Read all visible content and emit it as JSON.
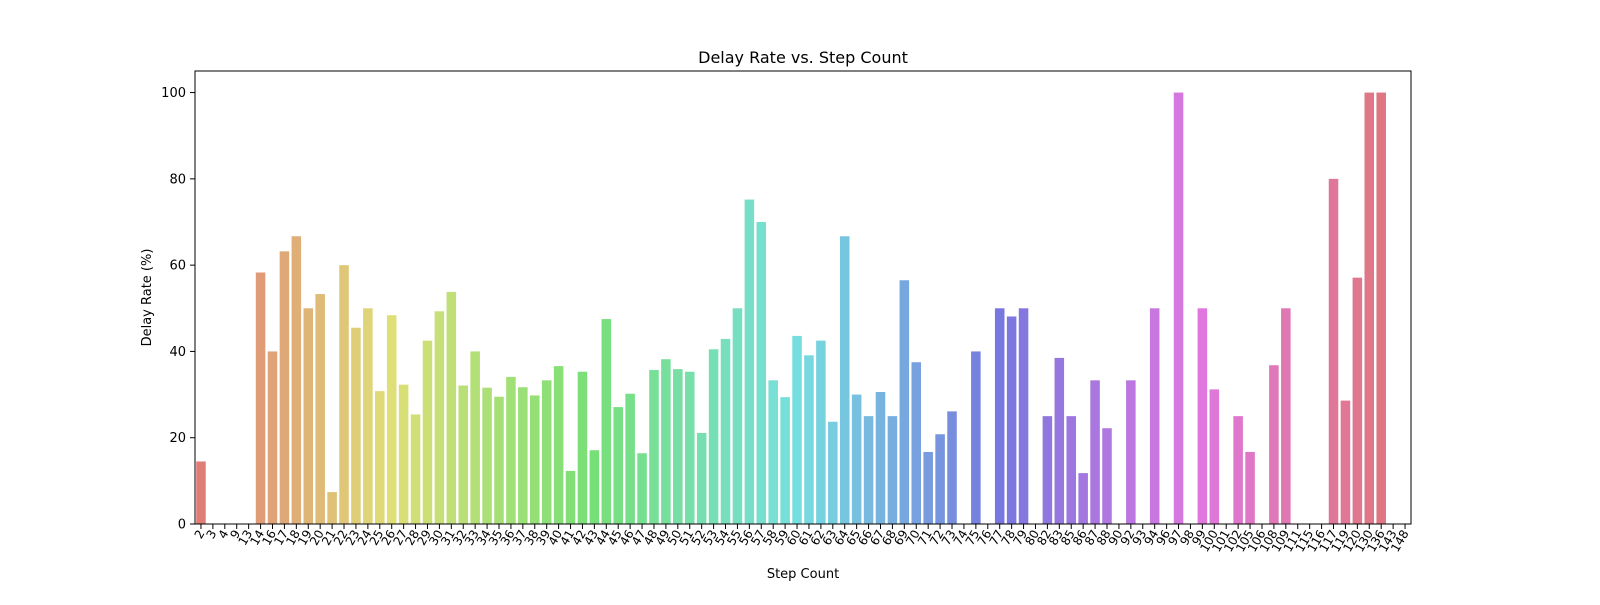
{
  "chart_data": {
    "type": "bar",
    "title": "Delay Rate vs. Step Count",
    "xlabel": "Step Count",
    "ylabel": "Delay Rate (%)",
    "ylim": [
      0,
      105
    ],
    "yticks": [
      "0",
      "20",
      "40",
      "60",
      "80",
      "100"
    ],
    "grid": false,
    "legend": "none",
    "categories": [
      "2",
      "3",
      "4",
      "9",
      "13",
      "14",
      "16",
      "17",
      "18",
      "19",
      "20",
      "21",
      "22",
      "23",
      "24",
      "25",
      "26",
      "27",
      "28",
      "29",
      "30",
      "31",
      "32",
      "33",
      "34",
      "35",
      "36",
      "37",
      "38",
      "39",
      "40",
      "41",
      "42",
      "43",
      "44",
      "45",
      "46",
      "47",
      "48",
      "49",
      "50",
      "51",
      "52",
      "53",
      "54",
      "55",
      "56",
      "57",
      "58",
      "59",
      "60",
      "61",
      "62",
      "63",
      "64",
      "65",
      "66",
      "67",
      "68",
      "69",
      "70",
      "71",
      "72",
      "73",
      "74",
      "75",
      "76",
      "77",
      "78",
      "79",
      "80",
      "82",
      "83",
      "85",
      "86",
      "87",
      "88",
      "90",
      "92",
      "93",
      "94",
      "96",
      "97",
      "98",
      "99",
      "100",
      "101",
      "102",
      "105",
      "106",
      "108",
      "109",
      "111",
      "115",
      "116",
      "117",
      "119",
      "120",
      "130",
      "136",
      "143",
      "148"
    ],
    "values": [
      14.5,
      0,
      0,
      0,
      0,
      58.3,
      40,
      63.2,
      66.7,
      50,
      53.3,
      7.4,
      60,
      45.5,
      50,
      30.8,
      48.4,
      32.3,
      25.4,
      42.5,
      49.3,
      53.8,
      32.1,
      40,
      31.6,
      29.5,
      34.1,
      31.7,
      29.8,
      33.3,
      36.6,
      12.3,
      35.3,
      17.1,
      47.5,
      27.1,
      30.2,
      16.4,
      35.7,
      38.2,
      35.9,
      35.3,
      21.1,
      40.5,
      42.9,
      50,
      75.2,
      70,
      33.3,
      29.4,
      43.6,
      39.1,
      42.5,
      23.7,
      66.7,
      30,
      25,
      30.6,
      25,
      56.5,
      37.5,
      16.7,
      20.8,
      26.1,
      0,
      40,
      0,
      50,
      48.1,
      50,
      0,
      25,
      38.5,
      25,
      11.8,
      33.3,
      22.2,
      0,
      33.3,
      0,
      50,
      0,
      100,
      0,
      50,
      31.2,
      0,
      25,
      16.7,
      0,
      36.8,
      50,
      0,
      0,
      0,
      80,
      28.6,
      57.1,
      100,
      100,
      0,
      0
    ]
  }
}
